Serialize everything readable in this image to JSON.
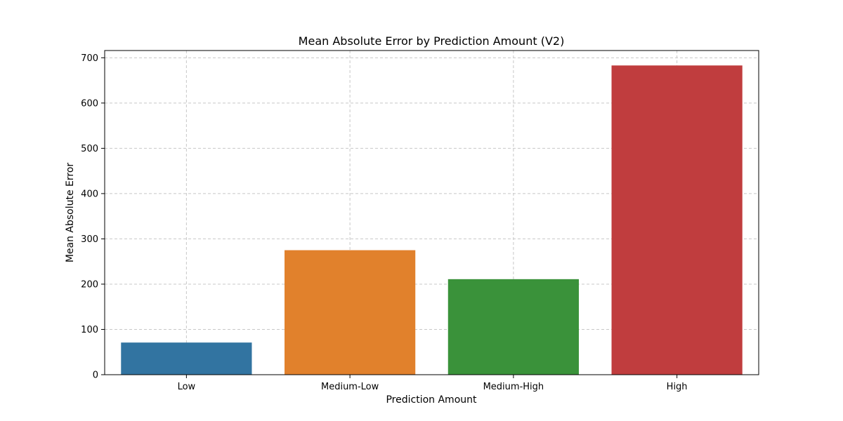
{
  "chart_data": {
    "type": "bar",
    "title": "Mean Absolute Error by Prediction Amount (V2)",
    "xlabel": "Prediction Amount",
    "ylabel": "Mean Absolute Error",
    "categories": [
      "Low",
      "Medium-Low",
      "Medium-High",
      "High"
    ],
    "values": [
      71,
      275,
      211,
      683
    ],
    "colors": [
      "#3274a1",
      "#e1812c",
      "#3a923a",
      "#c03d3e"
    ],
    "ylim": [
      0,
      716
    ],
    "yticks": [
      0,
      100,
      200,
      300,
      400,
      500,
      600,
      700
    ],
    "grid": true,
    "legend": "none"
  }
}
